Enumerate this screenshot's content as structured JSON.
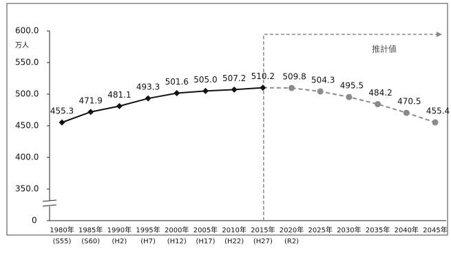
{
  "chart_data": {
    "type": "line",
    "unit": "万人",
    "annotation": "推計値",
    "categories": [
      "1980年",
      "1985年",
      "1990年",
      "1995年",
      "2000年",
      "2005年",
      "2010年",
      "2015年",
      "2020年",
      "2025年",
      "2030年",
      "2035年",
      "2040年",
      "2045年"
    ],
    "category_sublabels": [
      "(S55)",
      "(S60)",
      "(H2)",
      "(H7)",
      "(H12)",
      "(H17)",
      "(H22)",
      "(H27)",
      "(R2)",
      null,
      null,
      null,
      null,
      null
    ],
    "series": [
      {
        "color": "#111111",
        "dashed": false,
        "values": [
          455.3,
          471.9,
          481.1,
          493.3,
          501.6,
          505.0,
          507.2,
          510.2,
          null,
          null,
          null,
          null,
          null,
          null
        ],
        "value_labels": [
          "455.3",
          "471.9",
          "481.1",
          "493.3",
          "501.6",
          "505.0",
          "507.2",
          "510.2",
          null,
          null,
          null,
          null,
          null,
          null
        ]
      },
      {
        "color": "#8a8a8a",
        "dashed": true,
        "values": [
          null,
          null,
          null,
          null,
          null,
          null,
          null,
          null,
          509.8,
          504.3,
          495.5,
          484.2,
          470.5,
          455.4
        ],
        "value_labels": [
          null,
          null,
          null,
          null,
          null,
          null,
          null,
          null,
          "509.8",
          "504.3",
          "495.5",
          "484.2",
          "470.5",
          "455.4"
        ]
      }
    ],
    "ylim": [
      350,
      600
    ],
    "axis_break": true,
    "yticks": [
      {
        "value": 0,
        "label": "0"
      },
      {
        "value": 350,
        "label": "350.0"
      },
      {
        "value": 400,
        "label": "400.0"
      },
      {
        "value": 450,
        "label": "450.0"
      },
      {
        "value": 500,
        "label": "500.0"
      },
      {
        "value": 550,
        "label": "550.0"
      },
      {
        "value": 600,
        "label": "600.0"
      }
    ],
    "grid": false
  }
}
